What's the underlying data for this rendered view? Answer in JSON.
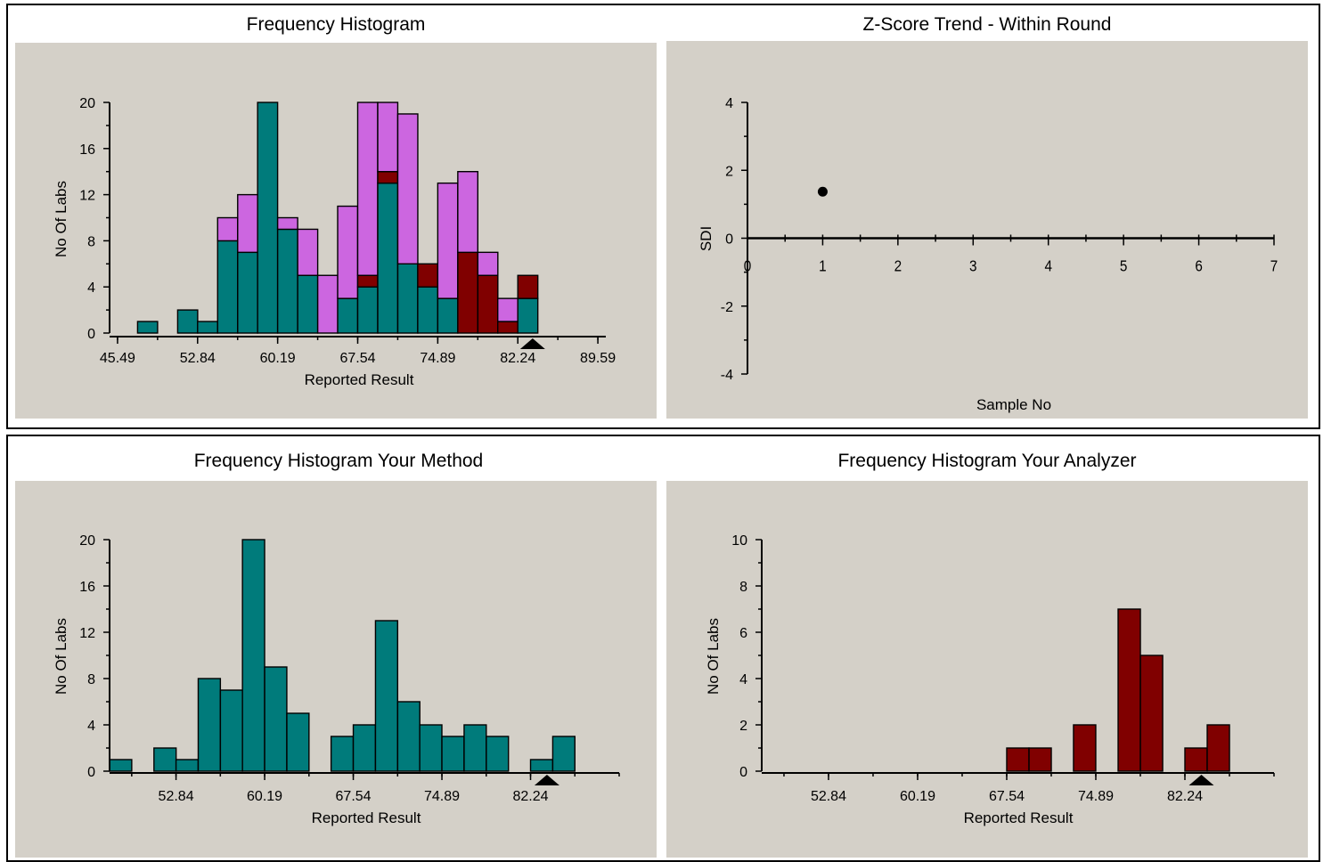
{
  "colors": {
    "background": "#d4d0c8",
    "teal": "#007b7b",
    "magenta": "#cc66e0",
    "darkred": "#800000",
    "axis": "#000000"
  },
  "panels": {
    "top_left_title": "Frequency Histogram",
    "top_right_title": "Z-Score Trend - Within Round",
    "bottom_left_title": "Frequency Histogram Your Method",
    "bottom_right_title": "Frequency Histogram Your  Analyzer"
  },
  "chart_data": [
    {
      "id": "all",
      "type": "bar",
      "stacked": true,
      "ylabel": "No Of Labs",
      "xlabel": "Reported Result",
      "ylim": [
        0,
        20
      ],
      "yticks": [
        "0",
        "4",
        "8",
        "12",
        "16",
        "20"
      ],
      "xlim": [
        44.76,
        90.32
      ],
      "xticks": [
        "45.49",
        "52.84",
        "60.19",
        "67.54",
        "74.89",
        "82.24",
        "89.59"
      ],
      "bin_width": 1.8375,
      "bin_starts": [
        47.33,
        49.17,
        51.01,
        52.84,
        54.68,
        56.52,
        58.35,
        60.19,
        62.03,
        63.87,
        65.7,
        67.54,
        69.38,
        71.22,
        73.05,
        74.89,
        76.73,
        78.57,
        80.4,
        82.24,
        84.08,
        85.92
      ],
      "series": [
        {
          "color": "#007b7b",
          "values": [
            1,
            0,
            2,
            1,
            8,
            7,
            20,
            9,
            5,
            0,
            3,
            4,
            13,
            6,
            4,
            3,
            0,
            0,
            0,
            3,
            0,
            0
          ]
        },
        {
          "color": "#800000",
          "values": [
            0,
            0,
            0,
            0,
            0,
            0,
            0,
            0,
            0,
            0,
            0,
            1,
            1,
            0,
            2,
            0,
            7,
            5,
            1,
            2,
            0,
            0
          ]
        },
        {
          "color": "#cc66e0",
          "values": [
            0,
            0,
            0,
            0,
            2,
            5,
            0,
            1,
            4,
            5,
            8,
            15,
            6,
            13,
            0,
            10,
            7,
            2,
            2,
            0,
            0,
            0
          ]
        }
      ],
      "marker_at": 83.6
    },
    {
      "id": "zscore",
      "type": "scatter",
      "ylabel": "SDI",
      "xlabel": "Sample No",
      "xlim": [
        0,
        7
      ],
      "ylim": [
        -4,
        4
      ],
      "xticks": [
        "0",
        "1",
        "2",
        "3",
        "4",
        "5",
        "6",
        "7"
      ],
      "yticks": [
        "-4",
        "-2",
        "0",
        "2",
        "4"
      ],
      "points": [
        {
          "x": 1,
          "y": 1.37
        }
      ]
    },
    {
      "id": "method",
      "type": "bar",
      "ylabel": "No Of Labs",
      "xlabel": "Reported Result",
      "ylim": [
        0,
        20
      ],
      "yticks": [
        "0",
        "4",
        "8",
        "12",
        "16",
        "20"
      ],
      "xlim": [
        47.33,
        89.59
      ],
      "xticks": [
        "52.84",
        "60.19",
        "67.54",
        "74.89",
        "82.24"
      ],
      "bin_width": 1.8375,
      "bin_starts": [
        47.33,
        49.17,
        51.01,
        52.84,
        54.68,
        56.52,
        58.35,
        60.19,
        62.03,
        63.87,
        65.7,
        67.54,
        69.38,
        71.22,
        73.05,
        74.89,
        76.73,
        78.57,
        80.4,
        82.24,
        84.08,
        85.92
      ],
      "series": [
        {
          "color": "#007b7b",
          "values": [
            1,
            0,
            2,
            1,
            8,
            7,
            20,
            9,
            5,
            0,
            3,
            4,
            13,
            6,
            4,
            3,
            4,
            3,
            0,
            1,
            3,
            0
          ]
        }
      ],
      "marker_at": 83.6
    },
    {
      "id": "analyzer",
      "type": "bar",
      "ylabel": "No Of Labs",
      "xlabel": "Reported Result",
      "ylim": [
        0,
        10
      ],
      "yticks": [
        "0",
        "2",
        "4",
        "6",
        "8",
        "10"
      ],
      "xlim": [
        47.33,
        89.59
      ],
      "xticks": [
        "52.84",
        "60.19",
        "67.54",
        "74.89",
        "82.24"
      ],
      "bin_width": 1.8375,
      "bin_starts": [
        47.33,
        49.17,
        51.01,
        52.84,
        54.68,
        56.52,
        58.35,
        60.19,
        62.03,
        63.87,
        65.7,
        67.54,
        69.38,
        71.22,
        73.05,
        74.89,
        76.73,
        78.57,
        80.4,
        82.24,
        84.08,
        85.92
      ],
      "series": [
        {
          "color": "#800000",
          "values": [
            0,
            0,
            0,
            0,
            0,
            0,
            0,
            0,
            0,
            0,
            0,
            1,
            1,
            0,
            2,
            0,
            7,
            5,
            0,
            1,
            2,
            0
          ]
        }
      ],
      "marker_at": 83.6
    }
  ]
}
